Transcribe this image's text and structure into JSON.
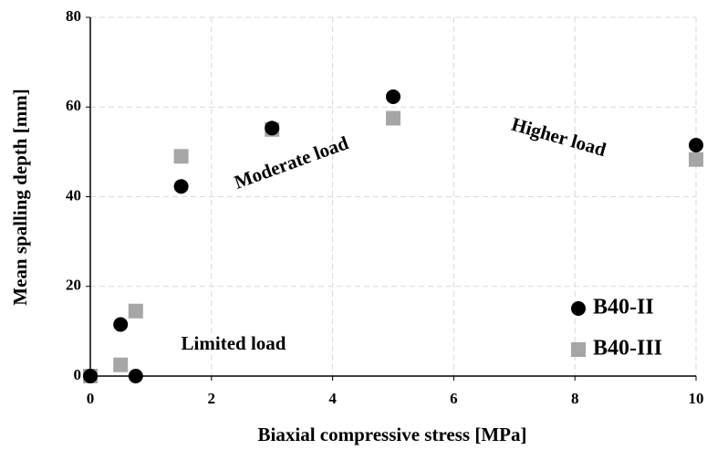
{
  "chart_data": {
    "type": "scatter",
    "xlabel": "Biaxial compressive stress [MPa]",
    "ylabel": "Mean spalling depth [mm]",
    "annotations": [
      "Moderate load",
      "Higher load",
      "Limited load"
    ],
    "series": [
      {
        "name": "B40-II",
        "color": "#000000",
        "marker": "circle",
        "x": [
          0,
          0.5,
          0.75,
          1.5,
          3,
          5,
          10
        ],
        "values": [
          0,
          11.5,
          0,
          42.3,
          55.3,
          62.3,
          51.5
        ]
      },
      {
        "name": "B40-III",
        "color": "#a6a6a6",
        "marker": "square",
        "x": [
          0,
          0.5,
          0.75,
          1.5,
          3,
          5,
          10
        ],
        "values": [
          0,
          2.5,
          14.5,
          49,
          55,
          57.5,
          48.3
        ]
      }
    ],
    "xlim": [
      0,
      10
    ],
    "xticks": [
      0,
      2,
      4,
      6,
      8,
      10
    ],
    "ylim": [
      0,
      80
    ],
    "yticks": [
      0,
      20,
      40,
      60,
      80
    ],
    "grid": true,
    "legend": "lower right"
  }
}
